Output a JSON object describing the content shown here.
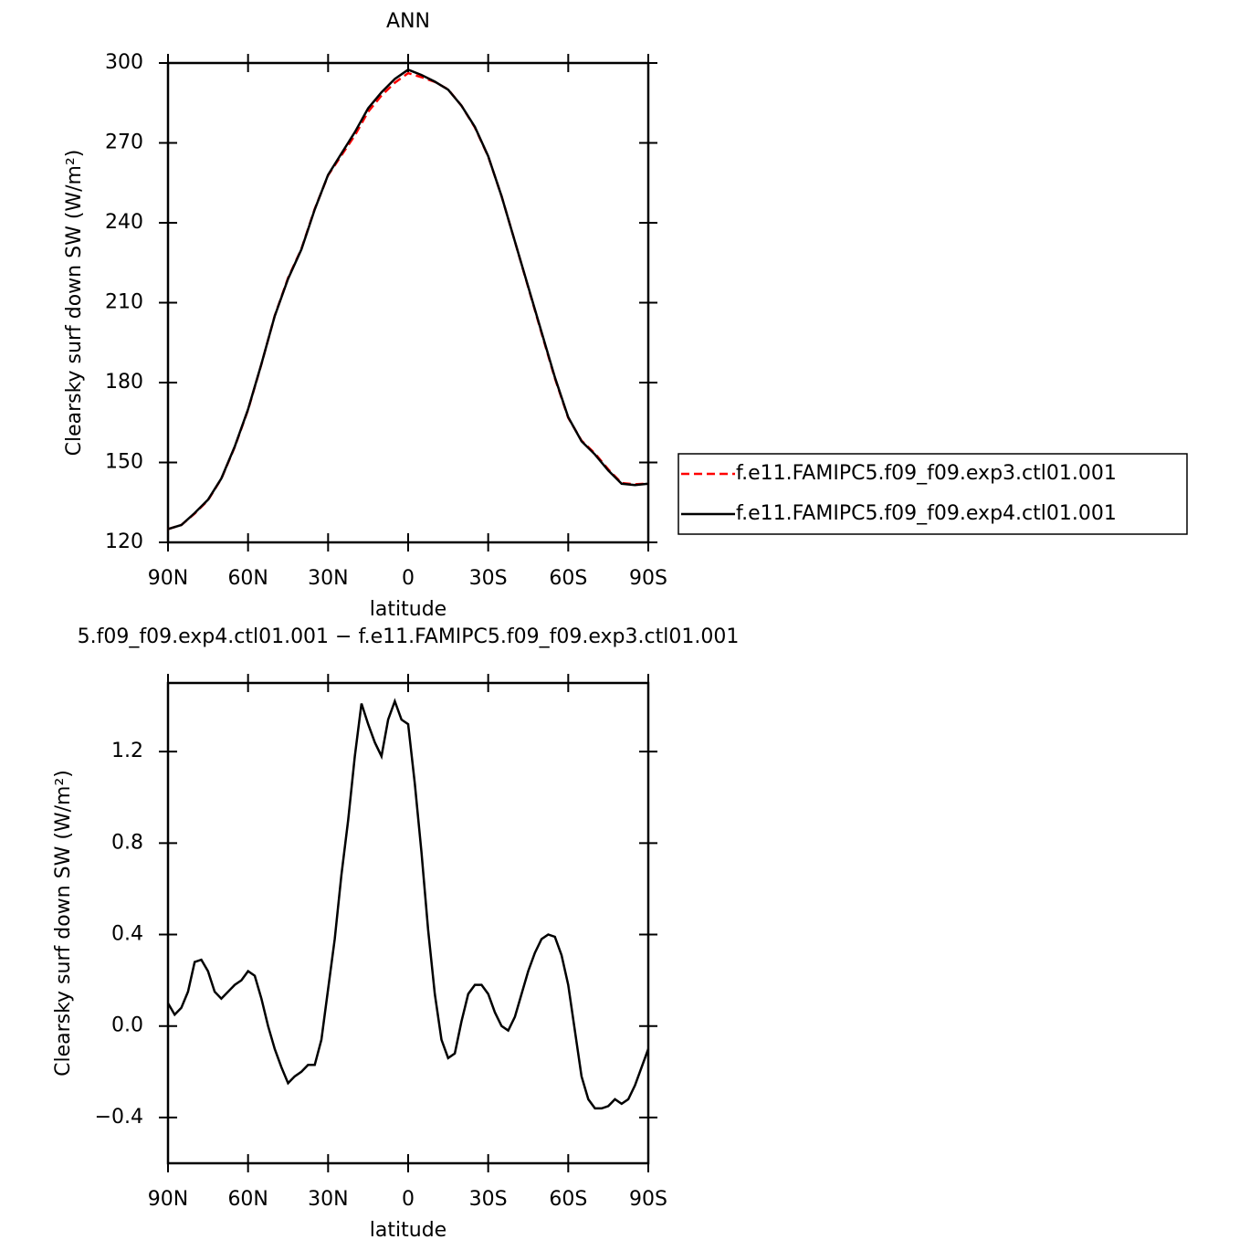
{
  "chart_data": [
    {
      "type": "line",
      "title": "ANN",
      "xlabel": "latitude",
      "ylabel": "Clearsky surf down SW (W/m²)",
      "x": [
        90,
        85,
        80,
        75,
        70,
        65,
        60,
        55,
        50,
        45,
        40,
        35,
        30,
        25,
        20,
        15,
        10,
        5,
        0,
        -5,
        -10,
        -15,
        -20,
        -25,
        -30,
        -35,
        -40,
        -45,
        -50,
        -55,
        -60,
        -65,
        -70,
        -75,
        -80,
        -85,
        -90
      ],
      "series": [
        {
          "name": "f.e11.FAMIPC5.f09_f09.exp3.ctl01.001",
          "color": "#ff0000",
          "linestyle": "dashed",
          "values": [
            125,
            126.5,
            130.8,
            135.8,
            143.9,
            155.8,
            169.8,
            186.9,
            205.1,
            219.3,
            230.2,
            245.2,
            257.8,
            265.3,
            272.8,
            281.7,
            287.8,
            292.6,
            296.2,
            294.7,
            292.9,
            290.1,
            284,
            275.8,
            264.9,
            250,
            233,
            215.8,
            198.6,
            181.6,
            166.8,
            158.2,
            153.4,
            147.4,
            142.3,
            141.8,
            142.1
          ]
        },
        {
          "name": "f.e11.FAMIPC5.f09_f09.exp4.ctl01.001",
          "color": "#000000",
          "linestyle": "solid",
          "values": [
            125,
            126.5,
            131,
            136,
            144,
            156,
            170,
            187,
            205,
            219,
            230,
            245,
            258,
            266,
            274,
            283,
            289,
            294,
            297.5,
            295.5,
            293,
            290,
            284,
            276,
            265,
            250,
            233,
            216,
            199,
            182,
            167,
            158,
            153,
            147,
            142,
            141.5,
            142
          ]
        }
      ],
      "xlim": [
        90,
        -90
      ],
      "xticks": [
        {
          "value": 90,
          "label": "90N"
        },
        {
          "value": 60,
          "label": "60N"
        },
        {
          "value": 30,
          "label": "30N"
        },
        0,
        {
          "value": -30,
          "label": "30S"
        },
        {
          "value": -60,
          "label": "60S"
        },
        {
          "value": -90,
          "label": "90S"
        }
      ],
      "ylim": [
        120,
        300
      ],
      "yticks": [
        120,
        150,
        180,
        210,
        240,
        270,
        300
      ],
      "legend": "right"
    },
    {
      "type": "line",
      "title": "5.f09_f09.exp4.ctl01.001 − f.e11.FAMIPC5.f09_f09.exp3.ctl01.001",
      "xlabel": "latitude",
      "ylabel": "Clearsky surf down SW (W/m²)",
      "x": [
        90,
        87.5,
        85,
        82.5,
        80,
        77.5,
        75,
        72.5,
        70,
        67.5,
        65,
        62.5,
        60,
        57.5,
        55,
        52.5,
        50,
        47.5,
        45,
        42.5,
        40,
        37.5,
        35,
        32.5,
        30,
        27.5,
        25,
        22.5,
        20,
        17.5,
        15,
        12.5,
        10,
        7.5,
        5,
        2.5,
        0,
        -2.5,
        -5,
        -7.5,
        -10,
        -12.5,
        -15,
        -17.5,
        -20,
        -22.5,
        -25,
        -27.5,
        -30,
        -32.5,
        -35,
        -37.5,
        -40,
        -42.5,
        -45,
        -47.5,
        -50,
        -52.5,
        -55,
        -57.5,
        -60,
        -62.5,
        -65,
        -67.5,
        -70,
        -72.5,
        -75,
        -77.5,
        -80,
        -82.5,
        -85,
        -87.5,
        -90
      ],
      "values": [
        0.1,
        0.05,
        0.08,
        0.15,
        0.28,
        0.29,
        0.24,
        0.15,
        0.12,
        0.15,
        0.18,
        0.2,
        0.24,
        0.22,
        0.12,
        0.0,
        -0.1,
        -0.18,
        -0.25,
        -0.22,
        -0.2,
        -0.17,
        -0.17,
        -0.06,
        0.16,
        0.38,
        0.66,
        0.9,
        1.18,
        1.41,
        1.32,
        1.24,
        1.18,
        1.34,
        1.42,
        1.34,
        1.32,
        1.06,
        0.76,
        0.42,
        0.14,
        -0.06,
        -0.14,
        -0.12,
        0.02,
        0.14,
        0.18,
        0.18,
        0.14,
        0.06,
        0.0,
        -0.02,
        0.04,
        0.14,
        0.24,
        0.32,
        0.38,
        0.4,
        0.39,
        0.31,
        0.18,
        -0.02,
        -0.22,
        -0.32,
        -0.36,
        -0.36,
        -0.35,
        -0.32,
        -0.34,
        -0.32,
        -0.26,
        -0.18,
        -0.1
      ],
      "color": "#000000",
      "xlim": [
        90,
        -90
      ],
      "xticks": [
        {
          "value": 90,
          "label": "90N"
        },
        {
          "value": 60,
          "label": "60N"
        },
        {
          "value": 30,
          "label": "30N"
        },
        0,
        {
          "value": -30,
          "label": "30S"
        },
        {
          "value": -60,
          "label": "60S"
        },
        {
          "value": -90,
          "label": "90S"
        }
      ],
      "ylim": [
        -0.6,
        1.5
      ],
      "yticks": [
        {
          "value": -0.4,
          "label": "−0.4"
        },
        {
          "value": 0,
          "label": "0.0"
        },
        0.4,
        0.8,
        1.2
      ]
    }
  ]
}
